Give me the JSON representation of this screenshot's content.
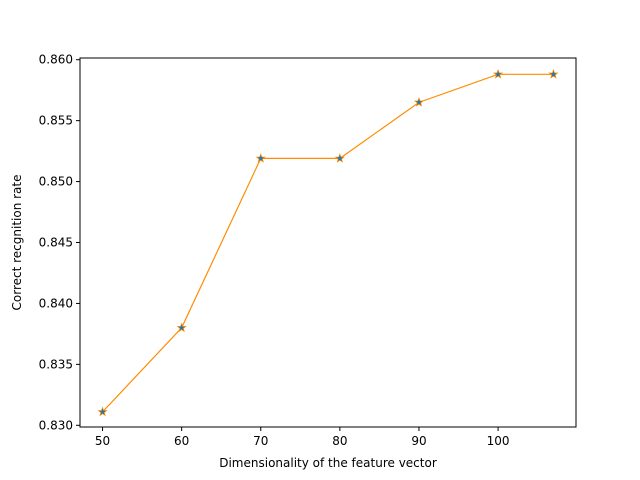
{
  "chart_data": {
    "type": "line",
    "title": "",
    "xlabel": "Dimensionality of the feature vector",
    "ylabel": "Correct recgnition rate",
    "xlim": [
      47.15,
      109.85
    ],
    "ylim": [
      0.82986,
      0.86014
    ],
    "xticks": [
      50,
      60,
      70,
      80,
      90,
      100
    ],
    "xtick_labels": [
      "50",
      "60",
      "70",
      "80",
      "90",
      "100"
    ],
    "yticks": [
      0.83,
      0.835,
      0.84,
      0.845,
      0.85,
      0.855,
      0.86
    ],
    "ytick_labels": [
      "0.830",
      "0.835",
      "0.840",
      "0.845",
      "0.850",
      "0.855",
      "0.860"
    ],
    "grid": false,
    "legend": "none",
    "series": [
      {
        "line_color": "#ff8c00",
        "marker": "star",
        "marker_color": "#1f77b4",
        "x": [
          50,
          60,
          70,
          80,
          90,
          100,
          107
        ],
        "y": [
          0.8311,
          0.838,
          0.8519,
          0.8519,
          0.8565,
          0.8588,
          0.8588
        ]
      }
    ]
  }
}
